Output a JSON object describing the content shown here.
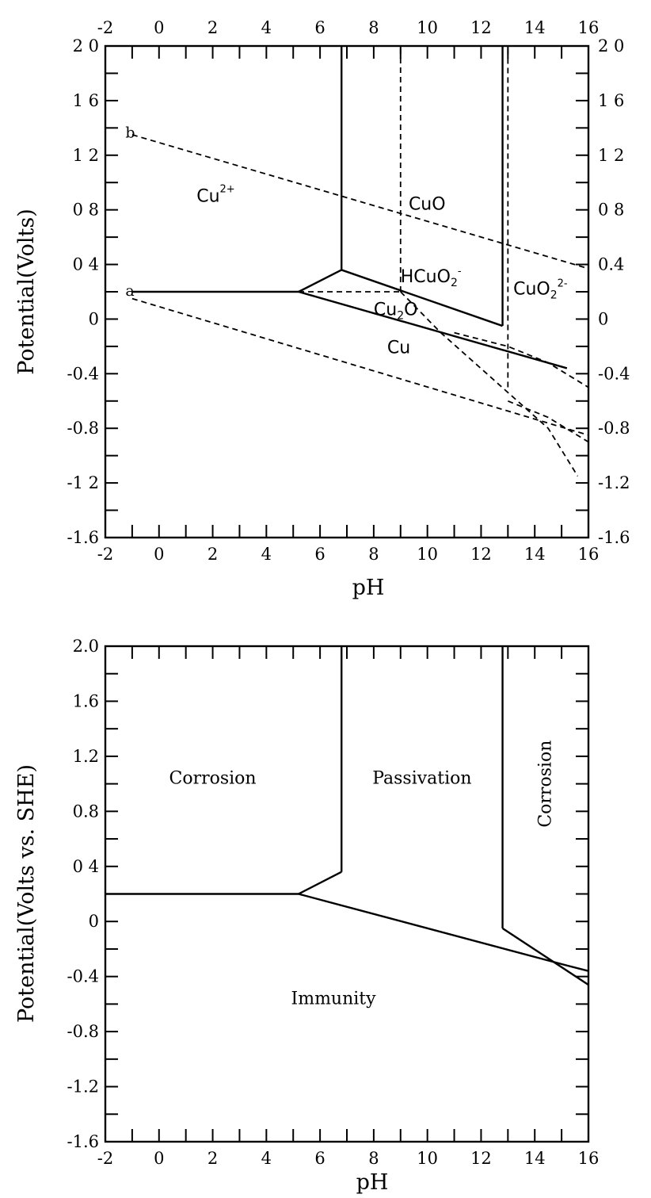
{
  "chart_data": [
    {
      "type": "line",
      "title": "",
      "xlabel": "pH",
      "ylabel": "Potential(Volts)",
      "xlim": [
        -2,
        16
      ],
      "ylim": [
        -1.6,
        2.0
      ],
      "x_ticks": [
        -2,
        0,
        2,
        4,
        6,
        8,
        10,
        12,
        14,
        16
      ],
      "y_ticks": [
        2.0,
        1.6,
        1.2,
        0.8,
        0.4,
        0,
        -0.4,
        -0.8,
        -1.2,
        -1.6
      ],
      "x_tick_labels_top": [
        "-2",
        "0",
        "2",
        "4",
        "6",
        "8",
        "10",
        "12",
        "14",
        "16"
      ],
      "x_tick_labels_bottom": [
        "-2",
        "0",
        "2",
        "4",
        "6",
        "8",
        "10",
        "12",
        "14",
        "16"
      ],
      "y_tick_labels_left": [
        "2 0",
        "1 6",
        "1 2",
        "0 8",
        "0 4",
        "0",
        "-0.4",
        "-0.8",
        "-1 2",
        "-1.6"
      ],
      "y_tick_labels_right": [
        "2 0",
        "1 6",
        "1 2",
        "0 8",
        "0.4",
        "0",
        "-0.4",
        "-0.8",
        "-1.2",
        "-1.6"
      ],
      "series": [
        {
          "style": "solid",
          "x": [
            -1,
            5.2
          ],
          "y": [
            0.2,
            0.2
          ]
        },
        {
          "style": "solid",
          "x": [
            5.2,
            6.8
          ],
          "y": [
            0.2,
            0.36
          ]
        },
        {
          "style": "solid",
          "x": [
            6.8,
            6.8
          ],
          "y": [
            0.36,
            2.0
          ]
        },
        {
          "style": "solid",
          "x": [
            6.8,
            12.8
          ],
          "y": [
            0.36,
            -0.05
          ]
        },
        {
          "style": "solid",
          "x": [
            12.8,
            12.8
          ],
          "y": [
            -0.05,
            2.0
          ]
        },
        {
          "style": "solid",
          "x": [
            5.2,
            15.2
          ],
          "y": [
            0.2,
            -0.36
          ]
        },
        {
          "style": "dashed",
          "x": [
            -1,
            16
          ],
          "y": [
            1.35,
            0.37
          ]
        },
        {
          "style": "dashed",
          "x": [
            -1,
            16
          ],
          "y": [
            0.15,
            -0.85
          ]
        },
        {
          "style": "dashed",
          "x": [
            9.0,
            9.0
          ],
          "y": [
            0.2,
            2.0
          ]
        },
        {
          "style": "dashed",
          "x": [
            13.0,
            13.0
          ],
          "y": [
            -0.5,
            2.0
          ]
        },
        {
          "style": "dashed",
          "x": [
            5.2,
            9.0
          ],
          "y": [
            0.2,
            0.2
          ]
        },
        {
          "style": "dashed",
          "x": [
            9.0,
            10.5,
            12.5,
            14.5,
            15.6
          ],
          "y": [
            0.2,
            -0.1,
            -0.45,
            -0.8,
            -1.15
          ]
        },
        {
          "style": "dashed",
          "x": [
            11.0,
            13.0,
            14.5,
            16.0
          ],
          "y": [
            -0.1,
            -0.2,
            -0.32,
            -0.5
          ]
        },
        {
          "style": "dashed",
          "x": [
            13.0,
            14.5,
            16.0
          ],
          "y": [
            -0.6,
            -0.72,
            -0.9
          ]
        }
      ],
      "annotations": [
        {
          "text": "b",
          "x": -1.25,
          "y": 1.33
        },
        {
          "text": "a",
          "x": -1.25,
          "y": 0.17
        },
        {
          "text": "Cu",
          "sup": "2+",
          "x": 1.4,
          "y": 0.86
        },
        {
          "text": "CuO",
          "x": 9.3,
          "y": 0.8
        },
        {
          "text": "HCuO",
          "sub": "2",
          "sup": "-",
          "x": 9.0,
          "y": 0.27
        },
        {
          "text": "CuO",
          "sub": "2",
          "sup": "2-",
          "x": 13.2,
          "y": 0.18
        },
        {
          "text": "Cu",
          "sub": "2",
          "tail": "O",
          "x": 8.0,
          "y": 0.03
        },
        {
          "text": "Cu",
          "x": 8.5,
          "y": -0.25
        }
      ]
    },
    {
      "type": "line",
      "title": "",
      "xlabel": "pH",
      "ylabel": "Potential(Volts vs. SHE)",
      "xlim": [
        -2,
        16
      ],
      "ylim": [
        -1.6,
        2.0
      ],
      "x_ticks": [
        -2,
        0,
        2,
        4,
        6,
        8,
        10,
        12,
        14,
        16
      ],
      "y_ticks": [
        2.0,
        1.6,
        1.2,
        0.8,
        0.4,
        0,
        -0.4,
        -0.8,
        -1.2,
        -1.6
      ],
      "x_tick_labels_bottom": [
        "-2",
        "0",
        "2",
        "4",
        "6",
        "8",
        "10",
        "12",
        "14",
        "16"
      ],
      "y_tick_labels_left": [
        "2.0",
        "1.6",
        "1.2",
        "0.8",
        "0 4",
        "0",
        "-0.4",
        "-0.8",
        "-1.2",
        "-1.6"
      ],
      "series": [
        {
          "style": "solid",
          "x": [
            -2,
            5.2
          ],
          "y": [
            0.2,
            0.2
          ]
        },
        {
          "style": "solid",
          "x": [
            5.2,
            6.8
          ],
          "y": [
            0.2,
            0.36
          ]
        },
        {
          "style": "solid",
          "x": [
            6.8,
            6.8
          ],
          "y": [
            0.36,
            2.0
          ]
        },
        {
          "style": "solid",
          "x": [
            5.2,
            15.2,
            16.0
          ],
          "y": [
            0.2,
            -0.32,
            -0.36
          ]
        },
        {
          "style": "solid",
          "x": [
            12.8,
            12.8
          ],
          "y": [
            -0.05,
            2.0
          ]
        },
        {
          "style": "solid",
          "x": [
            12.8,
            16.0
          ],
          "y": [
            -0.05,
            -0.46
          ]
        }
      ],
      "regions": [
        {
          "text": "Corrosion",
          "x": 2.0,
          "y": 1.0
        },
        {
          "text": "Passivation",
          "x": 9.8,
          "y": 1.0
        },
        {
          "text": "Corrosion",
          "x": 14.6,
          "y": 1.0,
          "rotate": -90
        },
        {
          "text": "Immunity",
          "x": 6.5,
          "y": -0.6
        }
      ]
    }
  ]
}
